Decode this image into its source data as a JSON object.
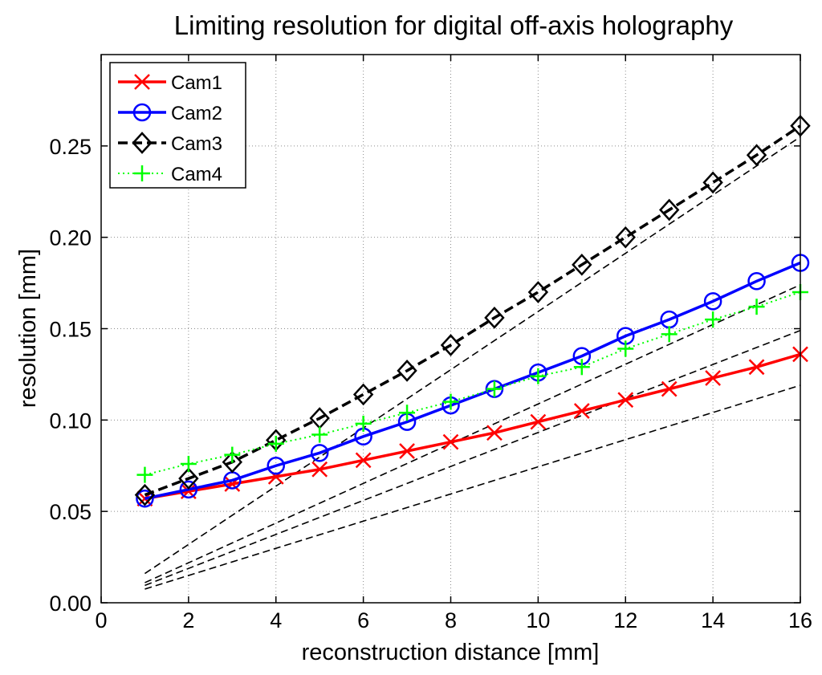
{
  "chart_data": {
    "type": "line",
    "title": "Limiting resolution for digital off-axis holography",
    "xlabel": "reconstruction distance [mm]",
    "ylabel": "resolution [mm]",
    "xlim": [
      0,
      16
    ],
    "ylim": [
      0,
      0.3
    ],
    "x_ticks": [
      0,
      2,
      4,
      6,
      8,
      10,
      12,
      14,
      16
    ],
    "x_tick_labels": [
      "0",
      "2",
      "4",
      "6",
      "8",
      "10",
      "12",
      "14",
      "16"
    ],
    "y_ticks": [
      0,
      0.05,
      0.1,
      0.15,
      0.2,
      0.25
    ],
    "y_tick_labels": [
      "0.00",
      "0.05",
      "0.10",
      "0.15",
      "0.20",
      "0.25"
    ],
    "grid": true,
    "legend_position": "top-left",
    "x": [
      1,
      2,
      3,
      4,
      5,
      6,
      7,
      8,
      9,
      10,
      11,
      12,
      13,
      14,
      15,
      16
    ],
    "series": [
      {
        "name": "Cam1",
        "color": "#ff0000",
        "line_style": "solid",
        "marker": "x",
        "values": [
          0.057,
          0.061,
          0.065,
          0.069,
          0.073,
          0.078,
          0.083,
          0.088,
          0.093,
          0.099,
          0.105,
          0.111,
          0.117,
          0.123,
          0.129,
          0.136
        ]
      },
      {
        "name": "Cam2",
        "color": "#0000ff",
        "line_style": "solid",
        "marker": "o",
        "values": [
          0.057,
          0.062,
          0.067,
          0.075,
          0.082,
          0.091,
          0.099,
          0.108,
          0.117,
          0.126,
          0.135,
          0.146,
          0.155,
          0.165,
          0.176,
          0.186
        ]
      },
      {
        "name": "Cam3",
        "color": "#000000",
        "line_style": "dashed",
        "marker": "diamond",
        "values": [
          0.059,
          0.068,
          0.077,
          0.089,
          0.101,
          0.114,
          0.127,
          0.141,
          0.156,
          0.17,
          0.185,
          0.2,
          0.215,
          0.23,
          0.245,
          0.261
        ]
      },
      {
        "name": "Cam4",
        "color": "#00ff00",
        "line_style": "dotted",
        "marker": "+",
        "values": [
          0.07,
          0.076,
          0.081,
          0.087,
          0.092,
          0.098,
          0.104,
          0.11,
          0.117,
          0.124,
          0.129,
          0.139,
          0.147,
          0.155,
          0.162,
          0.17
        ]
      }
    ],
    "reference_lines": [
      {
        "x": [
          1,
          16
        ],
        "y": [
          0.016,
          0.255
        ]
      },
      {
        "x": [
          1,
          16
        ],
        "y": [
          0.011,
          0.174
        ]
      },
      {
        "x": [
          1,
          16
        ],
        "y": [
          0.0095,
          0.149
        ]
      },
      {
        "x": [
          1,
          16
        ],
        "y": [
          0.0075,
          0.119
        ]
      }
    ]
  }
}
